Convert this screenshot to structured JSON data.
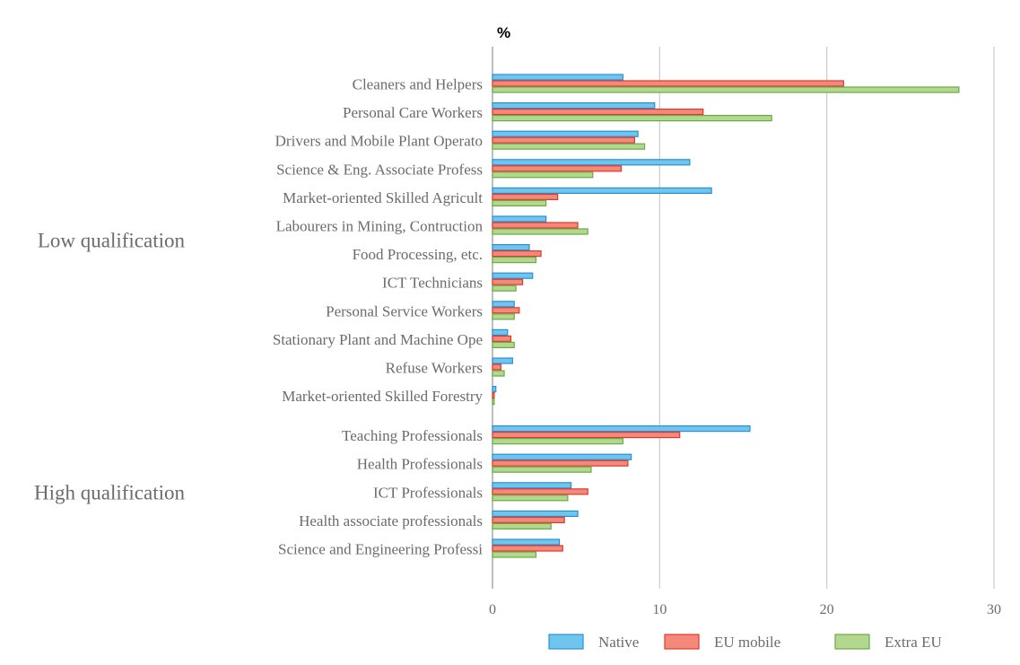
{
  "chart_data": {
    "type": "bar",
    "orientation": "horizontal",
    "unit_label": "%",
    "xlim": [
      0,
      30
    ],
    "x_ticks": [
      "0",
      "10",
      "20",
      "30"
    ],
    "grid": true,
    "legend_position": "bottom-right",
    "groups": [
      {
        "label": "Low qualification",
        "categories": [
          "Cleaners and Helpers",
          "Personal Care Workers",
          "Drivers and Mobile Plant Operato",
          "Science & Eng. Associate Profess",
          "Market-oriented Skilled Agricult",
          "Labourers in Mining, Contruction",
          "Food Processing, etc.",
          "ICT Technicians",
          "Personal Service Workers",
          "Stationary Plant and Machine Ope",
          "Refuse Workers",
          "Market-oriented Skilled Forestry"
        ]
      },
      {
        "label": "High qualification",
        "categories": [
          "Teaching Professionals",
          "Health Professionals",
          "ICT Professionals",
          "Health associate professionals",
          "Science and Engineering Professi"
        ]
      }
    ],
    "series": [
      {
        "name": "Native",
        "color": "#6ec6ef",
        "stroke": "#2c8fd0",
        "values": [
          7.8,
          9.7,
          8.7,
          11.8,
          13.1,
          3.2,
          2.2,
          2.4,
          1.3,
          0.9,
          1.2,
          0.2,
          15.4,
          8.3,
          4.7,
          5.1,
          4.0
        ]
      },
      {
        "name": "EU mobile",
        "color": "#f4887b",
        "stroke": "#e0382c",
        "values": [
          21.0,
          12.6,
          8.5,
          7.7,
          3.9,
          5.1,
          2.9,
          1.8,
          1.6,
          1.1,
          0.5,
          0.1,
          11.2,
          8.1,
          5.7,
          4.3,
          4.2
        ]
      },
      {
        "name": "Extra EU",
        "color": "#b3d78e",
        "stroke": "#6aab46",
        "values": [
          27.9,
          16.7,
          9.1,
          6.0,
          3.2,
          5.7,
          2.6,
          1.4,
          1.3,
          1.3,
          0.7,
          0.1,
          7.8,
          5.9,
          4.5,
          3.5,
          2.6
        ]
      }
    ]
  }
}
